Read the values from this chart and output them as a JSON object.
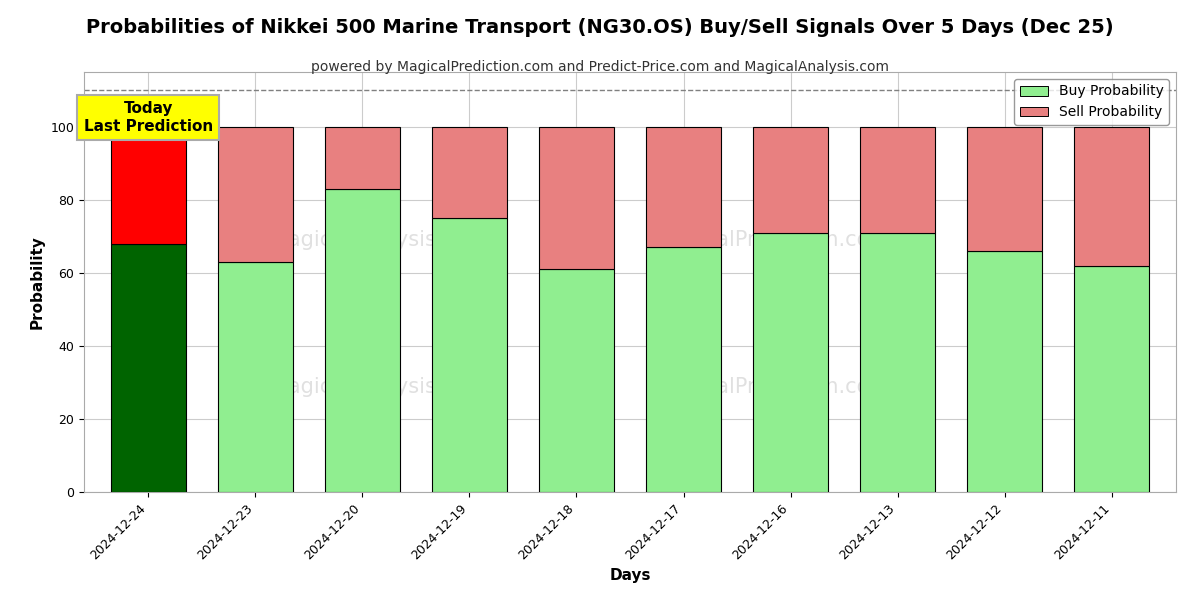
{
  "title": "Probabilities of Nikkei 500 Marine Transport (NG30.OS) Buy/Sell Signals Over 5 Days (Dec 25)",
  "subtitle": "powered by MagicalPrediction.com and Predict-Price.com and MagicalAnalysis.com",
  "xlabel": "Days",
  "ylabel": "Probability",
  "categories": [
    "2024-12-24",
    "2024-12-23",
    "2024-12-20",
    "2024-12-19",
    "2024-12-18",
    "2024-12-17",
    "2024-12-16",
    "2024-12-13",
    "2024-12-12",
    "2024-12-11"
  ],
  "buy_values": [
    68,
    63,
    83,
    75,
    61,
    67,
    71,
    71,
    66,
    62
  ],
  "sell_values": [
    32,
    37,
    17,
    25,
    39,
    33,
    29,
    29,
    34,
    38
  ],
  "today_bar_buy_color": "#006400",
  "today_bar_sell_color": "#FF0000",
  "other_bar_buy_color": "#90EE90",
  "other_bar_sell_color": "#E88080",
  "bar_edgecolor": "#000000",
  "legend_buy_color": "#90EE90",
  "legend_sell_color": "#E88080",
  "today_annotation_text": "Today\nLast Prediction",
  "today_annotation_bg": "#FFFF00",
  "dashed_line_y": 110,
  "ylim": [
    0,
    115
  ],
  "yticks": [
    0,
    20,
    40,
    60,
    80,
    100
  ],
  "grid_color": "#cccccc",
  "watermark_color": "#cccccc",
  "fig_width": 12,
  "fig_height": 6,
  "title_fontsize": 14,
  "subtitle_fontsize": 10,
  "axis_label_fontsize": 11,
  "tick_fontsize": 9,
  "legend_fontsize": 10
}
